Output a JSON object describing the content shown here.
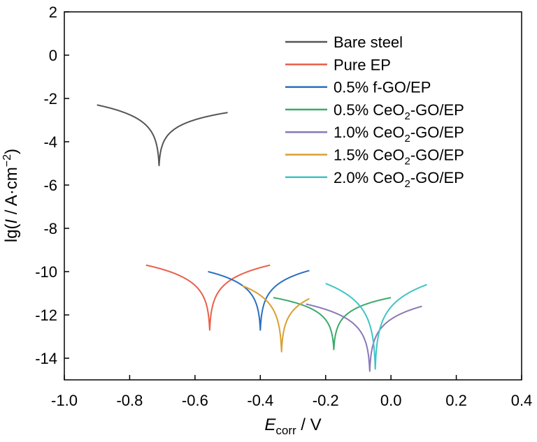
{
  "chart_data": {
    "type": "line",
    "title": "",
    "xlabel": {
      "main": "E",
      "sub": "corr",
      "rest": " / V"
    },
    "ylabel": {
      "pre": "lg(",
      "italic": "I",
      "mid": " / A·cm",
      "sup": "−2",
      "post": ")"
    },
    "xlim": [
      -1.0,
      0.4
    ],
    "ylim": [
      -15,
      2
    ],
    "xticks": [
      -1.0,
      -0.8,
      -0.6,
      -0.4,
      -0.2,
      0.0,
      0.2,
      0.4
    ],
    "xtick_labels": [
      "-1.0",
      "-0.8",
      "-0.6",
      "-0.4",
      "-0.2",
      "0.0",
      "0.2",
      "0.4"
    ],
    "yticks": [
      2,
      0,
      -2,
      -4,
      -6,
      -8,
      -10,
      -12,
      -14
    ],
    "ytick_labels": [
      "2",
      "0",
      "-2",
      "-4",
      "-6",
      "-8",
      "-10",
      "-12",
      "-14"
    ],
    "grid": false,
    "legend_position": "top-right",
    "series": [
      {
        "name": "Bare steel",
        "label_parts": {
          "pre": "Bare steel"
        },
        "color": "#555555",
        "ecorr": -0.71,
        "icorr": -5.1,
        "x_min": -0.9,
        "x_max": -0.5,
        "y_left": -2.3,
        "y_right": -2.65
      },
      {
        "name": "Pure EP",
        "label_parts": {
          "pre": "Pure EP"
        },
        "color": "#e8604a",
        "ecorr": -0.555,
        "icorr": -12.7,
        "x_min": -0.75,
        "x_max": -0.37,
        "y_left": -9.7,
        "y_right": -9.7
      },
      {
        "name": "0.5% f-GO/EP",
        "label_parts": {
          "pre": "0.5% f-GO/EP"
        },
        "color": "#2a6fbf",
        "ecorr": -0.4,
        "icorr": -12.7,
        "x_min": -0.56,
        "x_max": -0.25,
        "y_left": -10.0,
        "y_right": -9.95
      },
      {
        "name": "0.5% CeO2-GO/EP",
        "label_parts": {
          "pre": "0.5% CeO",
          "sub": "2",
          "post": "-GO/EP"
        },
        "color": "#3aaa6a",
        "ecorr": -0.175,
        "icorr": -13.6,
        "x_min": -0.36,
        "x_max": 0.0,
        "y_left": -11.2,
        "y_right": -11.2
      },
      {
        "name": "1.0% CeO2-GO/EP",
        "label_parts": {
          "pre": "1.0% CeO",
          "sub": "2",
          "post": "-GO/EP"
        },
        "color": "#8a78b8",
        "ecorr": -0.065,
        "icorr": -14.6,
        "x_min": -0.26,
        "x_max": 0.095,
        "y_left": -11.5,
        "y_right": -11.6
      },
      {
        "name": "1.5% CeO2-GO/EP",
        "label_parts": {
          "pre": "1.5% CeO",
          "sub": "2",
          "post": "-GO/EP"
        },
        "color": "#d9a030",
        "ecorr": -0.335,
        "icorr": -13.7,
        "x_min": -0.455,
        "x_max": -0.25,
        "y_left": -10.65,
        "y_right": -11.25
      },
      {
        "name": "2.0% CeO2-GO/EP",
        "label_parts": {
          "pre": "2.0% CeO",
          "sub": "2",
          "post": "-GO/EP"
        },
        "color": "#3fc4c4",
        "ecorr": -0.048,
        "icorr": -14.5,
        "x_min": -0.2,
        "x_max": 0.11,
        "y_left": -10.55,
        "y_right": -10.6
      }
    ]
  }
}
